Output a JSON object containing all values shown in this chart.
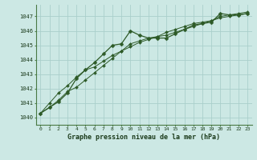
{
  "title": "Graphe pression niveau de la mer (hPa)",
  "background_color": "#cce8e4",
  "grid_color": "#aacfcb",
  "line_color": "#2d5a27",
  "xlim": [
    -0.5,
    23.5
  ],
  "ylim": [
    1039.5,
    1047.8
  ],
  "xticks": [
    0,
    1,
    2,
    3,
    4,
    5,
    6,
    7,
    8,
    9,
    10,
    11,
    12,
    13,
    14,
    15,
    16,
    17,
    18,
    19,
    20,
    21,
    22,
    23
  ],
  "yticks": [
    1040,
    1041,
    1042,
    1043,
    1044,
    1045,
    1046,
    1047
  ],
  "series1": {
    "x": [
      0,
      1,
      2,
      3,
      4,
      5,
      6,
      7,
      8,
      9,
      10,
      11,
      12,
      13,
      14,
      15,
      16,
      17,
      18,
      19,
      20,
      21,
      22,
      23
    ],
    "y": [
      1040.3,
      1040.7,
      1041.1,
      1041.7,
      1042.7,
      1043.3,
      1043.8,
      1044.4,
      1045.0,
      1045.1,
      1046.0,
      1045.7,
      1045.5,
      1045.5,
      1045.5,
      1045.8,
      1046.1,
      1046.4,
      1046.5,
      1046.6,
      1047.2,
      1047.1,
      1047.1,
      1047.2
    ]
  },
  "series2": {
    "x": [
      0,
      1,
      2,
      3,
      4,
      5,
      6,
      7,
      8,
      9,
      10,
      11,
      12,
      13,
      14,
      15,
      16,
      17,
      18,
      19,
      20,
      21,
      22,
      23
    ],
    "y": [
      1040.3,
      1040.7,
      1041.2,
      1041.8,
      1042.1,
      1042.6,
      1043.1,
      1043.6,
      1044.1,
      1044.6,
      1045.1,
      1045.3,
      1045.5,
      1045.6,
      1045.7,
      1045.9,
      1046.1,
      1046.3,
      1046.5,
      1046.7,
      1046.9,
      1047.0,
      1047.1,
      1047.2
    ]
  },
  "series3": {
    "x": [
      0,
      1,
      2,
      3,
      4,
      5,
      6,
      7,
      8,
      9,
      10,
      11,
      12,
      13,
      14,
      15,
      16,
      17,
      18,
      19,
      20,
      21,
      22,
      23
    ],
    "y": [
      1040.3,
      1041.0,
      1041.7,
      1042.2,
      1042.8,
      1043.3,
      1043.5,
      1043.9,
      1044.3,
      1044.6,
      1044.9,
      1045.2,
      1045.4,
      1045.6,
      1045.9,
      1046.1,
      1046.3,
      1046.5,
      1046.6,
      1046.7,
      1047.0,
      1047.1,
      1047.2,
      1047.3
    ]
  }
}
